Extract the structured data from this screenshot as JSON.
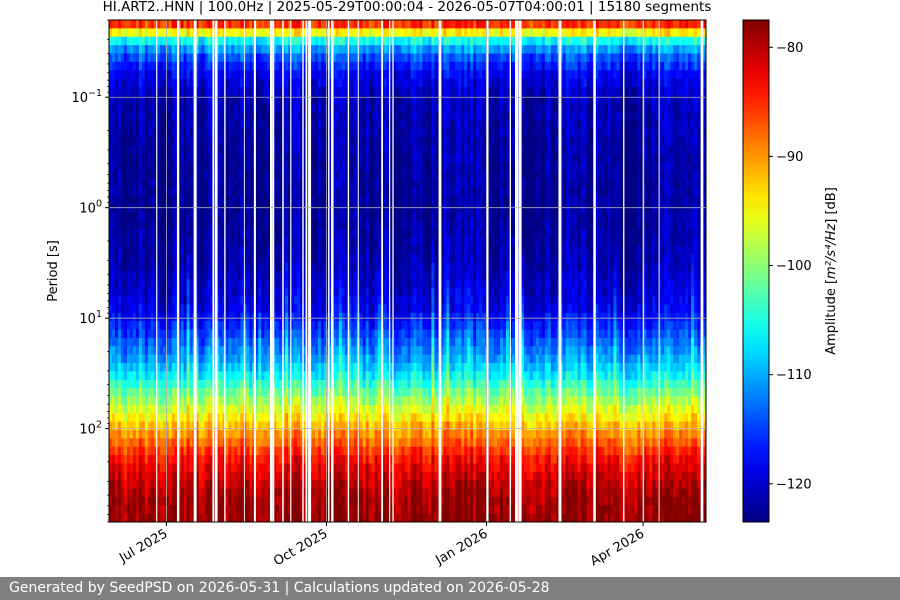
{
  "chart_data": {
    "type": "heatmap",
    "title": "HI.ART2..HNN | 100.0Hz | 2025-05-29T00:00:04 - 2026-05-07T04:00:01 | 15180 segments",
    "xlabel": "",
    "ylabel": "Period [s]",
    "x_range": [
      "2025-05-29T00:00:04",
      "2026-05-07T04:00:01"
    ],
    "x_ticks": [
      {
        "date": "2025-07-01",
        "label": "Jul 2025"
      },
      {
        "date": "2025-10-01",
        "label": "Oct 2025"
      },
      {
        "date": "2026-01-01",
        "label": "Jan 2026"
      },
      {
        "date": "2026-04-01",
        "label": "Apr 2026"
      }
    ],
    "y_scale": "log",
    "y_inverted": true,
    "y_range": [
      0.02,
      700
    ],
    "y_ticks": [
      {
        "value": 0.1,
        "base": "10",
        "exp": "−1"
      },
      {
        "value": 1,
        "base": "10",
        "exp": "0"
      },
      {
        "value": 10,
        "base": "10",
        "exp": "1"
      },
      {
        "value": 100,
        "base": "10",
        "exp": "2"
      }
    ],
    "grid": true,
    "colormap": "jet",
    "colorbar": {
      "label_prefix": "Amplitude [",
      "label_math": "m²/s⁴/Hz",
      "label_suffix": "] [dB]",
      "range": [
        -123.5,
        -77.5
      ],
      "ticks": [
        {
          "value": -80,
          "label": "−80"
        },
        {
          "value": -90,
          "label": "−90"
        },
        {
          "value": -100,
          "label": "−100"
        },
        {
          "value": -110,
          "label": "−110"
        },
        {
          "value": -120,
          "label": "−120"
        }
      ]
    },
    "period_profile_db": [
      {
        "period": 0.02,
        "db": -81
      },
      {
        "period": 0.025,
        "db": -92
      },
      {
        "period": 0.03,
        "db": -105
      },
      {
        "period": 0.04,
        "db": -113
      },
      {
        "period": 0.06,
        "db": -118
      },
      {
        "period": 0.1,
        "db": -121
      },
      {
        "period": 0.3,
        "db": -122
      },
      {
        "period": 1,
        "db": -122.5
      },
      {
        "period": 3,
        "db": -121.5
      },
      {
        "period": 8,
        "db": -119
      },
      {
        "period": 15,
        "db": -114
      },
      {
        "period": 30,
        "db": -108
      },
      {
        "period": 60,
        "db": -98
      },
      {
        "period": 100,
        "db": -91
      },
      {
        "period": 200,
        "db": -83
      },
      {
        "period": 400,
        "db": -79
      },
      {
        "period": 700,
        "db": -78
      }
    ]
  },
  "footer": {
    "text": "Generated by SeedPSD on 2026-05-31 | Calculations updated on 2026-05-28"
  }
}
